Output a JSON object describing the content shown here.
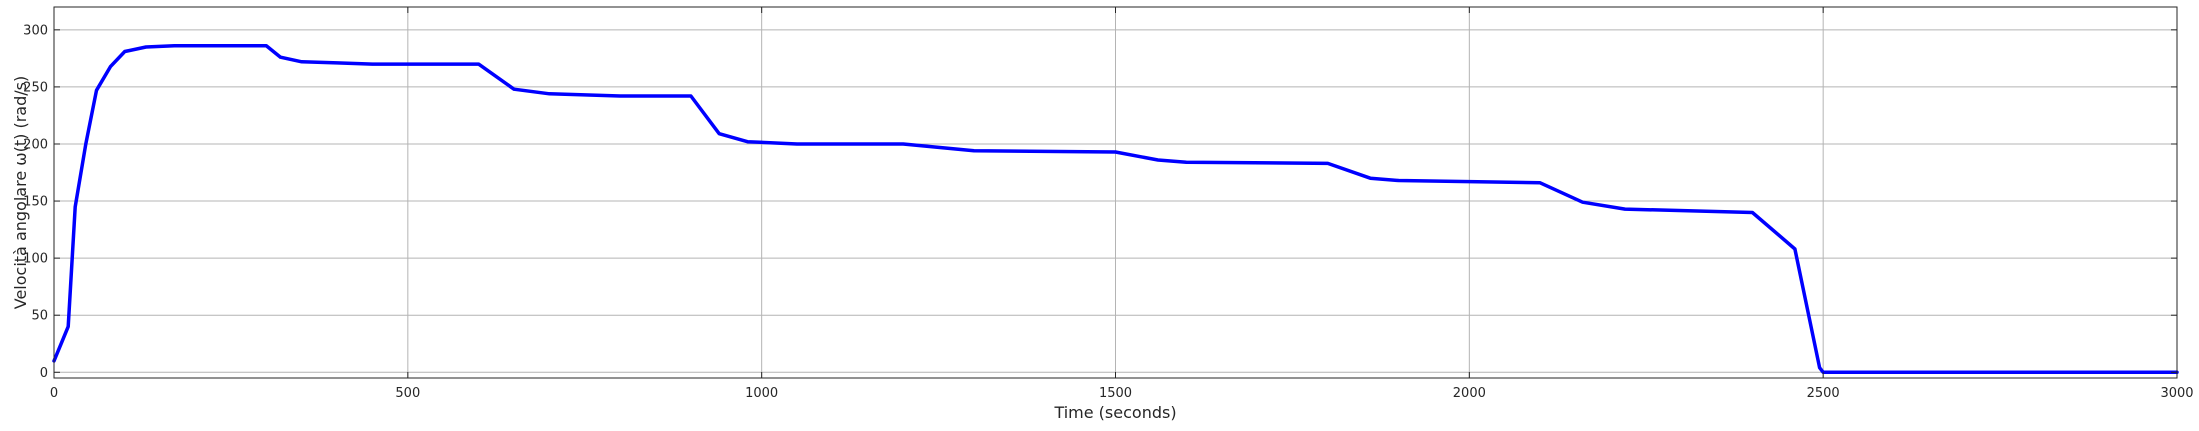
{
  "chart_data": {
    "type": "line",
    "title": "",
    "xlabel": "Time (seconds)",
    "ylabel": "Velocità angolare ω(t) (rad/s)",
    "xlim": [
      0,
      3000
    ],
    "ylim": [
      -5,
      320
    ],
    "xticks": [
      0,
      500,
      1000,
      1500,
      2000,
      2500,
      3000
    ],
    "yticks": [
      0,
      50,
      100,
      150,
      200,
      250,
      300
    ],
    "xtick_labels": [
      "0",
      "500",
      "1000",
      "1500",
      "2000",
      "2500",
      "3000"
    ],
    "ytick_labels": [
      "0",
      "50",
      "100",
      "150",
      "200",
      "250",
      "300"
    ],
    "grid": true,
    "line_color": "#0000ff",
    "series": [
      {
        "x": [
          0,
          10,
          20,
          30,
          45,
          60,
          80,
          100,
          130,
          170,
          300,
          320,
          350,
          400,
          450,
          600,
          650,
          700,
          800,
          900,
          940,
          980,
          1050,
          1200,
          1300,
          1500,
          1560,
          1600,
          1800,
          1860,
          1900,
          2100,
          2160,
          2220,
          2400,
          2460,
          2495,
          2500,
          2700,
          3000
        ],
        "y": [
          10,
          25,
          40,
          145,
          200,
          247,
          268,
          281,
          285,
          286,
          286,
          276,
          272,
          271,
          270,
          270,
          248,
          244,
          242,
          242,
          209,
          202,
          200,
          200,
          194,
          193,
          186,
          184,
          183,
          170,
          168,
          166,
          149,
          143,
          140,
          108,
          4,
          0,
          0,
          0
        ]
      }
    ]
  }
}
